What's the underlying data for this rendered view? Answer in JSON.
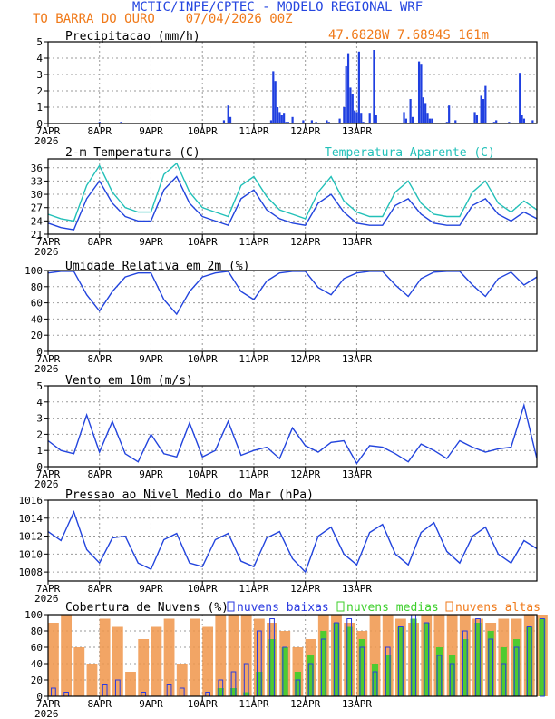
{
  "header": {
    "title": "MCTIC/INPE/CPTEC - MODELO REGIONAL WRF",
    "location_line": "TO BARRA DO OURO    07/04/2026 00Z",
    "coords": "47.6828W 7.6894S 161m"
  },
  "colors": {
    "title_blue": "#2546e0",
    "orange": "#f07a1a",
    "blue_line": "#2244dd",
    "cyan_line": "#22c0b8",
    "bar_blue": "#1f3fe0",
    "cloud_low": "#2a3ae0",
    "cloud_mid": "#3ccf2a",
    "cloud_high": "#f0954a",
    "grid": "#9a9a9a"
  },
  "x_axis": {
    "days": [
      "7APR",
      "8APR",
      "9APR",
      "10APR",
      "11APR",
      "12APR",
      "13APR"
    ],
    "year": "2026"
  },
  "chart_data": [
    {
      "type": "bar",
      "title": "Precipitacao (mm/h)",
      "ylim": [
        0,
        5
      ],
      "yticks": [
        0,
        1,
        2,
        3,
        4,
        5
      ],
      "x_hours": [
        24,
        34,
        82,
        84,
        85,
        104,
        105,
        106,
        107,
        108,
        109,
        110,
        111,
        112,
        114,
        119,
        123,
        125,
        130,
        131,
        136,
        138,
        139,
        140,
        141,
        142,
        143,
        144,
        145,
        146,
        147,
        150,
        152,
        153,
        166,
        167,
        169,
        170,
        173,
        174,
        175,
        176,
        177,
        178,
        179,
        186,
        187,
        190,
        199,
        200,
        202,
        203,
        204,
        208,
        209,
        215,
        220,
        221,
        222,
        226
      ],
      "values": [
        0.1,
        0.1,
        0.2,
        1.1,
        0.4,
        0.2,
        3.2,
        2.6,
        1.0,
        0.7,
        0.5,
        0.6,
        0.1,
        0.1,
        0.4,
        0.2,
        0.2,
        0.1,
        0.2,
        0.1,
        0.3,
        1.0,
        3.5,
        4.3,
        2.2,
        1.8,
        0.8,
        0.7,
        4.4,
        0.6,
        0.1,
        0.6,
        4.5,
        0.5,
        0.7,
        0.3,
        1.5,
        0.4,
        3.8,
        3.6,
        1.6,
        1.2,
        0.6,
        0.3,
        0.3,
        0.1,
        1.1,
        0.2,
        0.7,
        0.5,
        1.7,
        1.5,
        2.3,
        0.1,
        0.2,
        0.1,
        3.1,
        0.5,
        0.3,
        0.2
      ]
    },
    {
      "type": "line",
      "title": "2-m Temperatura (C)",
      "ylim": [
        21,
        38
      ],
      "yticks": [
        21,
        24,
        27,
        30,
        33,
        36
      ],
      "x_hours": [
        0,
        6,
        12,
        18,
        24,
        30,
        36,
        42,
        48,
        54,
        60,
        66,
        72,
        78,
        84,
        90,
        96,
        102,
        108,
        114,
        120,
        126,
        132,
        138,
        144,
        150,
        156,
        162,
        168,
        174,
        180,
        186,
        192,
        198,
        204,
        210,
        216,
        222,
        228
      ],
      "series": [
        {
          "name": "2-m Temperatura (C)",
          "values": [
            23.5,
            22.5,
            22.0,
            29.0,
            33.0,
            28.0,
            25.0,
            24.0,
            24.0,
            31.0,
            34.0,
            28.0,
            25.0,
            24.0,
            23.0,
            29.0,
            31.0,
            26.5,
            24.5,
            23.5,
            23.0,
            28.0,
            30.0,
            26.0,
            23.5,
            23.0,
            23.0,
            27.5,
            29.0,
            25.5,
            23.5,
            23.0,
            23.0,
            27.5,
            29.0,
            25.5,
            24.0,
            26.0,
            24.5
          ]
        },
        {
          "name": "Temperatura Aparente (C)",
          "values": [
            25.5,
            24.5,
            24.0,
            32.0,
            36.5,
            30.5,
            27.0,
            26.0,
            26.0,
            34.5,
            37.0,
            30.5,
            27.0,
            26.0,
            25.0,
            32.0,
            34.0,
            29.5,
            26.5,
            25.5,
            24.5,
            30.5,
            34.0,
            28.5,
            26.0,
            25.0,
            25.0,
            30.5,
            33.0,
            28.0,
            25.5,
            25.0,
            25.0,
            30.5,
            33.0,
            28.0,
            26.0,
            28.5,
            26.5
          ]
        }
      ]
    },
    {
      "type": "line",
      "title": "Umidade Relativa em 2m (%)",
      "ylim": [
        0,
        100
      ],
      "yticks": [
        0,
        20,
        40,
        60,
        80,
        100
      ],
      "x_hours": [
        0,
        6,
        12,
        18,
        24,
        30,
        36,
        42,
        48,
        54,
        60,
        66,
        72,
        78,
        84,
        90,
        96,
        102,
        108,
        114,
        120,
        126,
        132,
        138,
        144,
        150,
        156,
        162,
        168,
        174,
        180,
        186,
        192,
        198,
        204,
        210,
        216,
        222,
        228
      ],
      "series": [
        {
          "values": [
            97,
            99,
            99,
            70,
            50,
            74,
            92,
            97,
            97,
            64,
            46,
            74,
            92,
            97,
            99,
            74,
            64,
            87,
            97,
            99,
            99,
            79,
            70,
            90,
            97,
            99,
            99,
            82,
            68,
            90,
            98,
            99,
            99,
            82,
            68,
            90,
            98,
            82,
            92
          ]
        }
      ]
    },
    {
      "type": "line",
      "title": "Vento em 10m (m/s)",
      "ylim": [
        0,
        5
      ],
      "yticks": [
        0,
        1,
        2,
        3,
        4,
        5
      ],
      "x_hours": [
        0,
        6,
        12,
        18,
        24,
        30,
        36,
        42,
        48,
        54,
        60,
        66,
        72,
        78,
        84,
        90,
        96,
        102,
        108,
        114,
        120,
        126,
        132,
        138,
        144,
        150,
        156,
        162,
        168,
        174,
        180,
        186,
        192,
        198,
        204,
        210,
        216,
        222,
        228
      ],
      "series": [
        {
          "values": [
            1.6,
            1.0,
            0.8,
            3.2,
            0.9,
            2.8,
            0.8,
            0.3,
            2.0,
            0.8,
            0.6,
            2.7,
            0.6,
            1.0,
            2.8,
            0.7,
            1.0,
            1.2,
            0.5,
            2.4,
            1.3,
            0.9,
            1.5,
            1.6,
            0.2,
            1.3,
            1.2,
            0.8,
            0.3,
            1.4,
            1.0,
            0.5,
            1.6,
            1.2,
            0.9,
            1.1,
            1.2,
            3.8,
            0.5
          ]
        }
      ]
    },
    {
      "type": "line",
      "title": "Pressao ao Nivel Medio do Mar (hPa)",
      "ylim": [
        1007,
        1016
      ],
      "yticks": [
        1008,
        1010,
        1012,
        1014,
        1016
      ],
      "x_hours": [
        0,
        6,
        12,
        18,
        24,
        30,
        36,
        42,
        48,
        54,
        60,
        66,
        72,
        78,
        84,
        90,
        96,
        102,
        108,
        114,
        120,
        126,
        132,
        138,
        144,
        150,
        156,
        162,
        168,
        174,
        180,
        186,
        192,
        198,
        204,
        210,
        216,
        222,
        228
      ],
      "series": [
        {
          "values": [
            1012.5,
            1011.5,
            1014.7,
            1010.5,
            1009.0,
            1011.8,
            1012.0,
            1009.0,
            1008.3,
            1011.6,
            1012.3,
            1009.0,
            1008.6,
            1011.6,
            1012.3,
            1009.2,
            1008.6,
            1011.8,
            1012.5,
            1009.5,
            1008.0,
            1012.0,
            1013.0,
            1010.0,
            1008.8,
            1012.4,
            1013.3,
            1010.0,
            1008.8,
            1012.4,
            1013.5,
            1010.3,
            1009.0,
            1012.0,
            1013.0,
            1010.0,
            1009.0,
            1011.5,
            1010.6
          ]
        }
      ]
    },
    {
      "type": "bar",
      "title": "Cobertura de Nuvens (%)",
      "ylim": [
        0,
        100
      ],
      "yticks": [
        0,
        20,
        40,
        60,
        80,
        100
      ],
      "legend": [
        "nuvens baixas",
        "nuvens medias",
        "nuvens altas"
      ],
      "x_hours": [
        0,
        6,
        12,
        18,
        24,
        30,
        36,
        42,
        48,
        54,
        60,
        66,
        72,
        78,
        84,
        90,
        96,
        102,
        108,
        114,
        120,
        126,
        132,
        138,
        144,
        150,
        156,
        162,
        168,
        174,
        180,
        186,
        192,
        198,
        204,
        210,
        216,
        222,
        228
      ],
      "series": [
        {
          "name": "nuvens baixas",
          "values": [
            10,
            5,
            0,
            0,
            15,
            20,
            0,
            5,
            0,
            15,
            10,
            0,
            5,
            20,
            30,
            40,
            80,
            95,
            60,
            20,
            40,
            70,
            90,
            95,
            60,
            30,
            60,
            85,
            100,
            90,
            50,
            40,
            80,
            95,
            70,
            40,
            60,
            85,
            95
          ]
        },
        {
          "name": "nuvens medias",
          "values": [
            0,
            0,
            0,
            0,
            0,
            0,
            0,
            0,
            0,
            0,
            0,
            0,
            0,
            10,
            10,
            5,
            30,
            70,
            60,
            30,
            50,
            80,
            90,
            85,
            70,
            40,
            50,
            85,
            95,
            90,
            60,
            50,
            70,
            90,
            80,
            60,
            70,
            85,
            95
          ]
        },
        {
          "name": "nuvens altas",
          "values": [
            90,
            100,
            60,
            40,
            95,
            85,
            30,
            70,
            85,
            95,
            40,
            95,
            85,
            100,
            100,
            100,
            95,
            90,
            80,
            60,
            70,
            100,
            100,
            90,
            80,
            100,
            100,
            95,
            90,
            100,
            100,
            100,
            100,
            95,
            90,
            95,
            95,
            100,
            100
          ]
        }
      ]
    }
  ]
}
